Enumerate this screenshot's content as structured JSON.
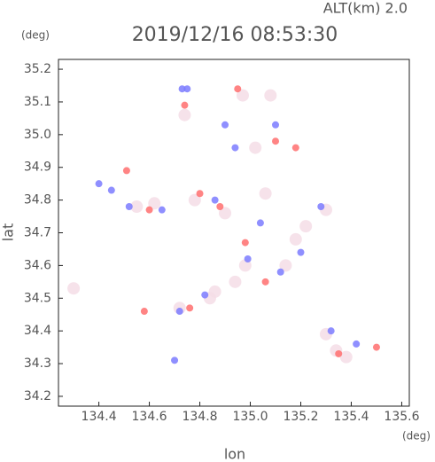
{
  "chart_data": {
    "type": "scatter",
    "title": "2019/12/16 08:53:30",
    "subtitle": "ALT(km) 2.0",
    "y_unit": "(deg)",
    "x_unit": "(deg)",
    "x_label": "lon",
    "y_label": "lat",
    "xlim": [
      134.24,
      135.63
    ],
    "ylim": [
      34.17,
      35.23
    ],
    "xticks": [
      134.4,
      134.6,
      134.8,
      {
        "value": 135.0,
        "label": "135.0"
      },
      135.2,
      135.4,
      135.6
    ],
    "yticks": [
      34.2,
      34.3,
      34.4,
      34.5,
      34.6,
      34.7,
      34.8,
      34.9,
      {
        "value": 35.0,
        "label": "35.0"
      },
      35.1,
      35.2
    ],
    "series": [
      {
        "color": "#f4dde6",
        "x": [
          134.74,
          134.97,
          135.08,
          135.02,
          134.55,
          134.78,
          134.9,
          135.06,
          135.3,
          135.18,
          135.14,
          134.98,
          134.86,
          134.72,
          134.3,
          135.38,
          135.3,
          134.62,
          134.84,
          135.22,
          134.94,
          135.34
        ],
        "values": [
          35.06,
          35.12,
          35.12,
          34.96,
          34.78,
          34.8,
          34.76,
          34.82,
          34.77,
          34.68,
          34.6,
          34.6,
          34.52,
          34.47,
          34.53,
          34.32,
          34.39,
          34.79,
          34.5,
          34.72,
          34.55,
          34.34
        ]
      },
      {
        "color": "#7b7bff",
        "x": [
          134.73,
          134.9,
          134.4,
          135.1,
          134.52,
          134.7,
          134.86,
          135.2,
          135.28,
          135.12,
          134.99,
          134.82,
          134.72,
          134.65,
          135.42,
          135.32,
          135.04,
          134.75,
          134.94,
          134.45
        ],
        "values": [
          35.14,
          35.03,
          34.85,
          35.03,
          34.78,
          34.31,
          34.8,
          34.64,
          34.78,
          34.58,
          34.62,
          34.51,
          34.46,
          34.77,
          34.36,
          34.4,
          34.73,
          35.14,
          34.96,
          34.83
        ]
      },
      {
        "color": "#ff6f6f",
        "x": [
          134.74,
          135.18,
          134.51,
          134.58,
          135.5,
          134.95,
          134.88,
          134.6,
          135.1,
          135.35,
          134.8,
          134.76,
          135.06,
          134.98
        ],
        "values": [
          35.09,
          34.96,
          34.89,
          34.46,
          34.35,
          35.14,
          34.78,
          34.77,
          34.98,
          34.33,
          34.82,
          34.47,
          34.55,
          34.67
        ]
      }
    ]
  }
}
